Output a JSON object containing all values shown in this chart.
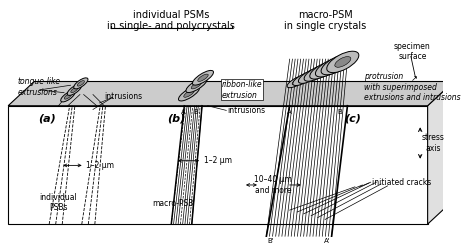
{
  "title_left": "individual PSMs\nin single- and polycrystals",
  "title_right": "macro-PSM\nin single crystals",
  "label_a": "(a)",
  "label_b": "(b)",
  "label_c": "(c)",
  "text_tongue": "tongue-like\nextrusions",
  "text_intrusions_a": "intrusions",
  "text_ribbon": "ribbon-like\nextrusion",
  "text_intrusions_b": "intrusions",
  "text_protrusion": "protrusion\nwith superimposed\nextrusions and intrusions",
  "text_specimen": "specimen\nsurface",
  "text_stress": "stress\naxis",
  "text_psb": "individual\nPSBs",
  "text_macro_psb": "macro-PSB",
  "text_1_2_left": "1–2 μm",
  "text_1_2_right": "1–2 μm",
  "text_10_40": "10–40 μm\nand more",
  "text_cracks": "initiated cracks",
  "white": "#ffffff",
  "gray_surface": "#cccccc",
  "gray_light": "#e0e0e0",
  "gray_dark": "#aaaaaa",
  "line_color": "#000000"
}
